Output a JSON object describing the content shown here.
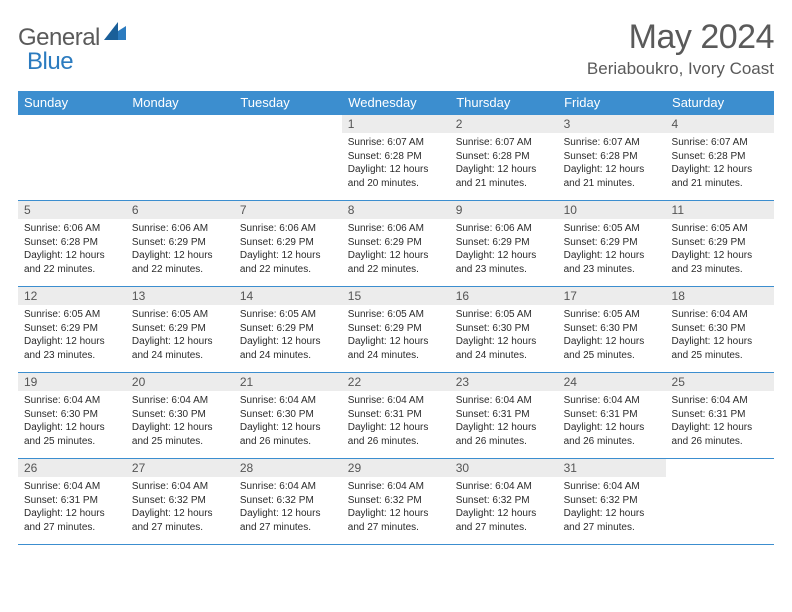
{
  "brand": {
    "part1": "General",
    "part2": "Blue"
  },
  "title": "May 2024",
  "location": "Beriaboukro, Ivory Coast",
  "colors": {
    "header_bg": "#3c8ecf",
    "daynum_bg": "#ececec",
    "rule": "#3c8ecf",
    "text": "#2b2b2b",
    "title_text": "#5a5a5a"
  },
  "columns": [
    "Sunday",
    "Monday",
    "Tuesday",
    "Wednesday",
    "Thursday",
    "Friday",
    "Saturday"
  ],
  "weeks": [
    [
      {
        "n": "",
        "sr": "",
        "ss": "",
        "dl": ""
      },
      {
        "n": "",
        "sr": "",
        "ss": "",
        "dl": ""
      },
      {
        "n": "",
        "sr": "",
        "ss": "",
        "dl": ""
      },
      {
        "n": "1",
        "sr": "Sunrise: 6:07 AM",
        "ss": "Sunset: 6:28 PM",
        "dl": "Daylight: 12 hours and 20 minutes."
      },
      {
        "n": "2",
        "sr": "Sunrise: 6:07 AM",
        "ss": "Sunset: 6:28 PM",
        "dl": "Daylight: 12 hours and 21 minutes."
      },
      {
        "n": "3",
        "sr": "Sunrise: 6:07 AM",
        "ss": "Sunset: 6:28 PM",
        "dl": "Daylight: 12 hours and 21 minutes."
      },
      {
        "n": "4",
        "sr": "Sunrise: 6:07 AM",
        "ss": "Sunset: 6:28 PM",
        "dl": "Daylight: 12 hours and 21 minutes."
      }
    ],
    [
      {
        "n": "5",
        "sr": "Sunrise: 6:06 AM",
        "ss": "Sunset: 6:28 PM",
        "dl": "Daylight: 12 hours and 22 minutes."
      },
      {
        "n": "6",
        "sr": "Sunrise: 6:06 AM",
        "ss": "Sunset: 6:29 PM",
        "dl": "Daylight: 12 hours and 22 minutes."
      },
      {
        "n": "7",
        "sr": "Sunrise: 6:06 AM",
        "ss": "Sunset: 6:29 PM",
        "dl": "Daylight: 12 hours and 22 minutes."
      },
      {
        "n": "8",
        "sr": "Sunrise: 6:06 AM",
        "ss": "Sunset: 6:29 PM",
        "dl": "Daylight: 12 hours and 22 minutes."
      },
      {
        "n": "9",
        "sr": "Sunrise: 6:06 AM",
        "ss": "Sunset: 6:29 PM",
        "dl": "Daylight: 12 hours and 23 minutes."
      },
      {
        "n": "10",
        "sr": "Sunrise: 6:05 AM",
        "ss": "Sunset: 6:29 PM",
        "dl": "Daylight: 12 hours and 23 minutes."
      },
      {
        "n": "11",
        "sr": "Sunrise: 6:05 AM",
        "ss": "Sunset: 6:29 PM",
        "dl": "Daylight: 12 hours and 23 minutes."
      }
    ],
    [
      {
        "n": "12",
        "sr": "Sunrise: 6:05 AM",
        "ss": "Sunset: 6:29 PM",
        "dl": "Daylight: 12 hours and 23 minutes."
      },
      {
        "n": "13",
        "sr": "Sunrise: 6:05 AM",
        "ss": "Sunset: 6:29 PM",
        "dl": "Daylight: 12 hours and 24 minutes."
      },
      {
        "n": "14",
        "sr": "Sunrise: 6:05 AM",
        "ss": "Sunset: 6:29 PM",
        "dl": "Daylight: 12 hours and 24 minutes."
      },
      {
        "n": "15",
        "sr": "Sunrise: 6:05 AM",
        "ss": "Sunset: 6:29 PM",
        "dl": "Daylight: 12 hours and 24 minutes."
      },
      {
        "n": "16",
        "sr": "Sunrise: 6:05 AM",
        "ss": "Sunset: 6:30 PM",
        "dl": "Daylight: 12 hours and 24 minutes."
      },
      {
        "n": "17",
        "sr": "Sunrise: 6:05 AM",
        "ss": "Sunset: 6:30 PM",
        "dl": "Daylight: 12 hours and 25 minutes."
      },
      {
        "n": "18",
        "sr": "Sunrise: 6:04 AM",
        "ss": "Sunset: 6:30 PM",
        "dl": "Daylight: 12 hours and 25 minutes."
      }
    ],
    [
      {
        "n": "19",
        "sr": "Sunrise: 6:04 AM",
        "ss": "Sunset: 6:30 PM",
        "dl": "Daylight: 12 hours and 25 minutes."
      },
      {
        "n": "20",
        "sr": "Sunrise: 6:04 AM",
        "ss": "Sunset: 6:30 PM",
        "dl": "Daylight: 12 hours and 25 minutes."
      },
      {
        "n": "21",
        "sr": "Sunrise: 6:04 AM",
        "ss": "Sunset: 6:30 PM",
        "dl": "Daylight: 12 hours and 26 minutes."
      },
      {
        "n": "22",
        "sr": "Sunrise: 6:04 AM",
        "ss": "Sunset: 6:31 PM",
        "dl": "Daylight: 12 hours and 26 minutes."
      },
      {
        "n": "23",
        "sr": "Sunrise: 6:04 AM",
        "ss": "Sunset: 6:31 PM",
        "dl": "Daylight: 12 hours and 26 minutes."
      },
      {
        "n": "24",
        "sr": "Sunrise: 6:04 AM",
        "ss": "Sunset: 6:31 PM",
        "dl": "Daylight: 12 hours and 26 minutes."
      },
      {
        "n": "25",
        "sr": "Sunrise: 6:04 AM",
        "ss": "Sunset: 6:31 PM",
        "dl": "Daylight: 12 hours and 26 minutes."
      }
    ],
    [
      {
        "n": "26",
        "sr": "Sunrise: 6:04 AM",
        "ss": "Sunset: 6:31 PM",
        "dl": "Daylight: 12 hours and 27 minutes."
      },
      {
        "n": "27",
        "sr": "Sunrise: 6:04 AM",
        "ss": "Sunset: 6:32 PM",
        "dl": "Daylight: 12 hours and 27 minutes."
      },
      {
        "n": "28",
        "sr": "Sunrise: 6:04 AM",
        "ss": "Sunset: 6:32 PM",
        "dl": "Daylight: 12 hours and 27 minutes."
      },
      {
        "n": "29",
        "sr": "Sunrise: 6:04 AM",
        "ss": "Sunset: 6:32 PM",
        "dl": "Daylight: 12 hours and 27 minutes."
      },
      {
        "n": "30",
        "sr": "Sunrise: 6:04 AM",
        "ss": "Sunset: 6:32 PM",
        "dl": "Daylight: 12 hours and 27 minutes."
      },
      {
        "n": "31",
        "sr": "Sunrise: 6:04 AM",
        "ss": "Sunset: 6:32 PM",
        "dl": "Daylight: 12 hours and 27 minutes."
      },
      {
        "n": "",
        "sr": "",
        "ss": "",
        "dl": ""
      }
    ]
  ]
}
